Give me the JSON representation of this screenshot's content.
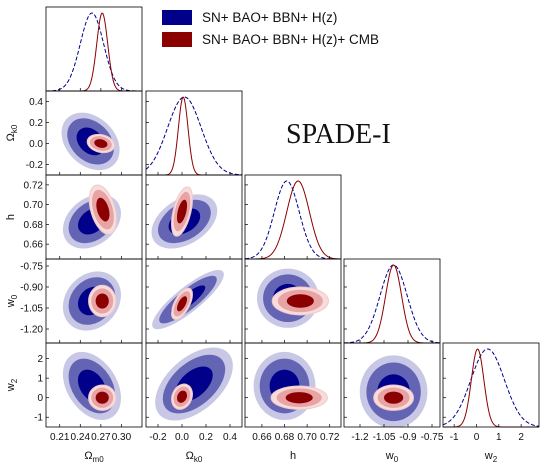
{
  "chart_data": {
    "type": "corner",
    "title": "SPADE-I",
    "series": [
      {
        "name": "SN+ BAO+ BBN+ H(z)",
        "color": "#00008b",
        "contour_colors": [
          "#c8c8e6",
          "#6464b4",
          "#00008b"
        ]
      },
      {
        "name": "SN+ BAO+ BBN+ H(z)+ CMB",
        "color": "#8b0000",
        "contour_colors": [
          "#f7dcdc",
          "#e8a4a4",
          "#8b0000"
        ]
      }
    ],
    "parameters": [
      {
        "label_main": "Ω",
        "label_sub": "m0",
        "range": [
          0.19,
          0.33
        ],
        "ticks": [
          "0.21",
          "0.24",
          "0.27",
          "0.30"
        ],
        "tick_values": [
          0.21,
          0.24,
          0.27,
          0.3
        ]
      },
      {
        "label_main": "Ω",
        "label_sub": "k0",
        "range": [
          -0.3,
          0.5
        ],
        "ticks": [
          "-0.2",
          "0.0",
          "0.2",
          "0.4"
        ],
        "tick_values": [
          -0.2,
          0.0,
          0.2,
          0.4
        ]
      },
      {
        "label_main": "h",
        "label_sub": "",
        "range": [
          0.645,
          0.73
        ],
        "ticks": [
          "0.66",
          "0.68",
          "0.70",
          "0.72"
        ],
        "tick_values": [
          0.66,
          0.68,
          0.7,
          0.72
        ]
      },
      {
        "label_main": "w",
        "label_sub": "0",
        "range": [
          -1.3,
          -0.7
        ],
        "ticks": [
          "-1.2",
          "-1.05",
          "-0.9",
          "-0.75"
        ],
        "tick_values": [
          -1.2,
          -1.05,
          -0.9,
          -0.75
        ]
      },
      {
        "label_main": "w",
        "label_sub": "2",
        "range": [
          -1.5,
          2.8
        ],
        "ticks": [
          "-1",
          "0",
          "1",
          "2"
        ],
        "tick_values": [
          -1,
          0,
          1,
          2
        ]
      }
    ],
    "y_axis_ticks": [
      {
        "param": 1,
        "ticks": [
          "0.4",
          "0.2",
          "0.0",
          "-0.2"
        ],
        "tick_values": [
          0.4,
          0.2,
          0.0,
          -0.2
        ]
      },
      {
        "param": 2,
        "ticks": [
          "0.72",
          "0.70",
          "0.68",
          "0.66"
        ],
        "tick_values": [
          0.72,
          0.7,
          0.68,
          0.66
        ]
      },
      {
        "param": 3,
        "ticks": [
          "-0.75",
          "-0.90",
          "-1.05",
          "-1.20"
        ],
        "tick_values": [
          -0.75,
          -0.9,
          -1.05,
          -1.2
        ]
      },
      {
        "param": 4,
        "ticks": [
          "2",
          "1",
          "0",
          "-1"
        ],
        "tick_values": [
          2,
          1,
          0,
          -1
        ]
      }
    ],
    "marginals": [
      {
        "param": 0,
        "series0": {
          "mean": 0.257,
          "sigma": 0.017
        },
        "series1": {
          "mean": 0.272,
          "sigma": 0.008
        }
      },
      {
        "param": 1,
        "series0": {
          "mean": 0.02,
          "sigma": 0.14
        },
        "series1": {
          "mean": 0.01,
          "sigma": 0.04
        }
      },
      {
        "param": 2,
        "series0": {
          "mean": 0.682,
          "sigma": 0.011
        },
        "series1": {
          "mean": 0.692,
          "sigma": 0.01
        }
      },
      {
        "param": 3,
        "series0": {
          "mean": -0.99,
          "sigma": 0.085
        },
        "series1": {
          "mean": -0.99,
          "sigma": 0.05
        }
      },
      {
        "param": 4,
        "series0": {
          "mean": 0.5,
          "sigma": 0.75
        },
        "series1": {
          "mean": 0.05,
          "sigma": 0.28
        }
      }
    ],
    "joint_2d": [
      {
        "x": 0,
        "y": 1,
        "series0": {
          "cx": 0.255,
          "cy": 0.02,
          "sx": 0.017,
          "sy": 0.11,
          "rho": -0.3
        },
        "series1": {
          "cx": 0.27,
          "cy": 0.0,
          "sx": 0.008,
          "sy": 0.035,
          "rho": -0.2
        }
      },
      {
        "x": 0,
        "y": 2,
        "series0": {
          "cx": 0.257,
          "cy": 0.683,
          "sx": 0.017,
          "sy": 0.011,
          "rho": 0.3
        },
        "series1": {
          "cx": 0.273,
          "cy": 0.695,
          "sx": 0.008,
          "sy": 0.01,
          "rho": -0.4
        }
      },
      {
        "x": 0,
        "y": 3,
        "series0": {
          "cx": 0.257,
          "cy": -1.0,
          "sx": 0.017,
          "sy": 0.085,
          "rho": 0.2
        },
        "series1": {
          "cx": 0.272,
          "cy": -1.0,
          "sx": 0.008,
          "sy": 0.045,
          "rho": 0.0
        }
      },
      {
        "x": 0,
        "y": 4,
        "series0": {
          "cx": 0.257,
          "cy": 0.6,
          "sx": 0.017,
          "sy": 0.7,
          "rho": -0.35
        },
        "series1": {
          "cx": 0.272,
          "cy": 0.0,
          "sx": 0.008,
          "sy": 0.26,
          "rho": 0.0
        }
      },
      {
        "x": 1,
        "y": 2,
        "series0": {
          "cx": 0.02,
          "cy": 0.683,
          "sx": 0.11,
          "sy": 0.011,
          "rho": 0.4
        },
        "series1": {
          "cx": 0.0,
          "cy": 0.693,
          "sx": 0.035,
          "sy": 0.01,
          "rho": 0.5
        }
      },
      {
        "x": 1,
        "y": 3,
        "series0": {
          "cx": 0.05,
          "cy": -0.99,
          "sx": 0.12,
          "sy": 0.085,
          "rho": 0.85
        },
        "series1": {
          "cx": 0.0,
          "cy": -1.02,
          "sx": 0.035,
          "sy": 0.045,
          "rho": 0.6
        }
      },
      {
        "x": 1,
        "y": 4,
        "series0": {
          "cx": 0.1,
          "cy": 0.7,
          "sx": 0.13,
          "sy": 0.75,
          "rho": 0.5
        },
        "series1": {
          "cx": 0.0,
          "cy": 0.05,
          "sx": 0.035,
          "sy": 0.26,
          "rho": 0.2
        }
      },
      {
        "x": 2,
        "y": 3,
        "series0": {
          "cx": 0.683,
          "cy": -0.98,
          "sx": 0.011,
          "sy": 0.085,
          "rho": 0.0
        },
        "series1": {
          "cx": 0.694,
          "cy": -1.0,
          "sx": 0.01,
          "sy": 0.04,
          "rho": 0.0
        }
      },
      {
        "x": 2,
        "y": 4,
        "series0": {
          "cx": 0.68,
          "cy": 0.6,
          "sx": 0.011,
          "sy": 0.7,
          "rho": 0.0
        },
        "series1": {
          "cx": 0.693,
          "cy": 0.0,
          "sx": 0.01,
          "sy": 0.24,
          "rho": 0.0
        }
      },
      {
        "x": 3,
        "y": 4,
        "series0": {
          "cx": -0.99,
          "cy": 0.3,
          "sx": 0.085,
          "sy": 0.75,
          "rho": 0.0
        },
        "series1": {
          "cx": -0.99,
          "cy": 0.0,
          "sx": 0.05,
          "sy": 0.26,
          "rho": 0.0
        }
      }
    ],
    "legend_position": "top-right",
    "grid": false
  }
}
